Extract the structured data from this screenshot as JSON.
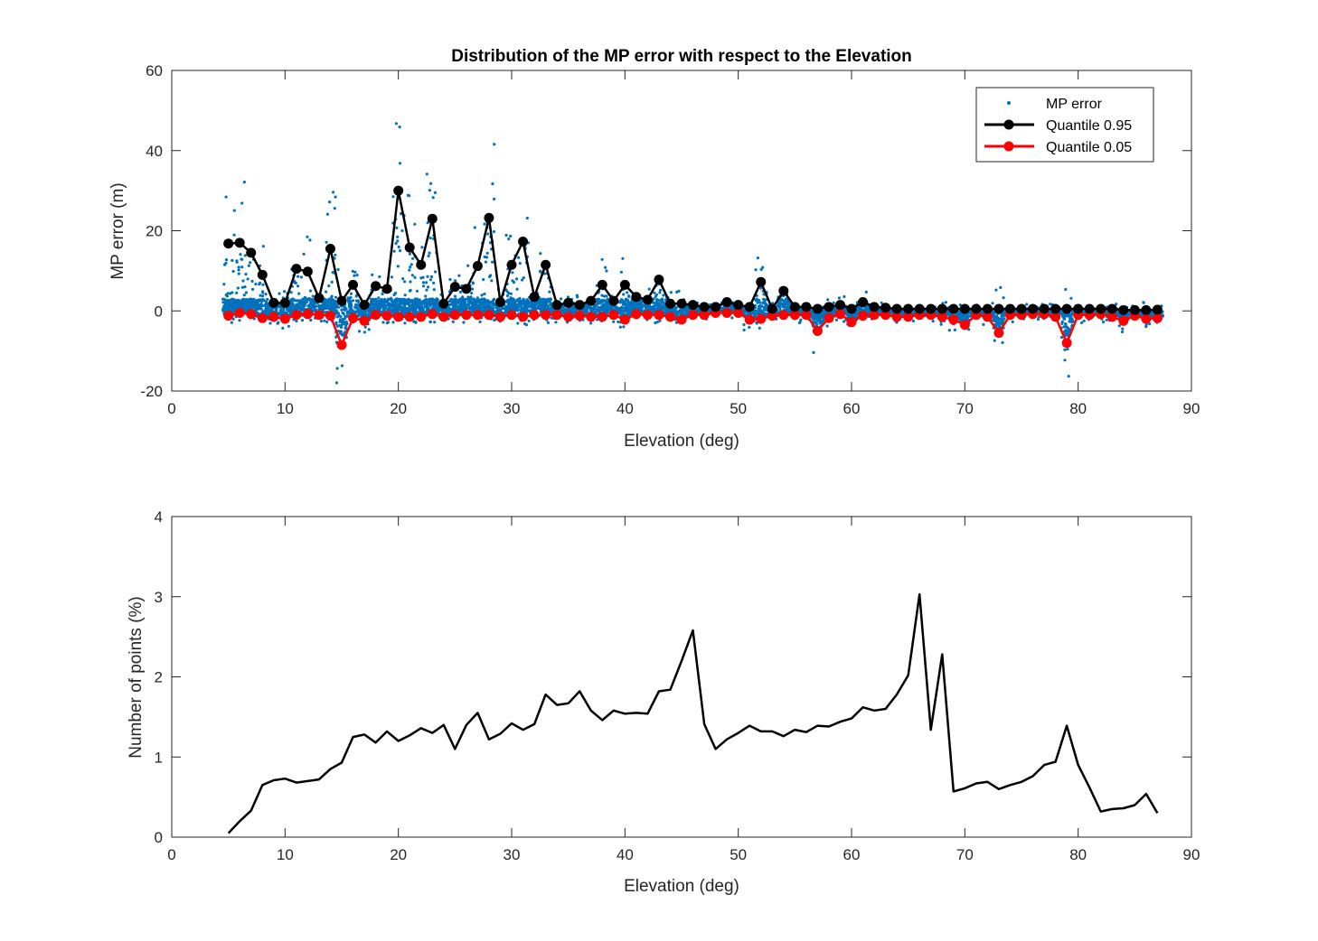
{
  "colors": {
    "scatter": "#0072BD",
    "q95": "#000000",
    "q05": "#FF0000",
    "axis": "#262626",
    "line": "#000000"
  },
  "chart_data": [
    {
      "type": "scatter",
      "title": "Distribution of the MP error with respect to the Elevation",
      "xlabel": "Elevation (deg)",
      "ylabel": "MP error (m)",
      "xlim": [
        0,
        90
      ],
      "ylim": [
        -20,
        60
      ],
      "xticks": [
        "0",
        "10",
        "20",
        "30",
        "40",
        "50",
        "60",
        "70",
        "80",
        "90"
      ],
      "yticks": [
        "-20",
        "0",
        "20",
        "40",
        "60"
      ],
      "grid": false,
      "legend": {
        "placement": "top-right",
        "entries": [
          "MP error",
          "Quantile 0.95",
          "Quantile 0.05"
        ]
      },
      "x": [
        5,
        6,
        7,
        8,
        9,
        10,
        11,
        12,
        13,
        14,
        15,
        16,
        17,
        18,
        19,
        20,
        21,
        22,
        23,
        24,
        25,
        26,
        27,
        28,
        29,
        30,
        31,
        32,
        33,
        34,
        35,
        36,
        37,
        38,
        39,
        40,
        41,
        42,
        43,
        44,
        45,
        46,
        47,
        48,
        49,
        50,
        51,
        52,
        53,
        54,
        55,
        56,
        57,
        58,
        59,
        60,
        61,
        62,
        63,
        64,
        65,
        66,
        67,
        68,
        69,
        70,
        71,
        72,
        73,
        74,
        75,
        76,
        77,
        78,
        79,
        80,
        81,
        82,
        83,
        84,
        85,
        86,
        87
      ],
      "series": [
        {
          "name": "Quantile 0.95",
          "values": [
            16.8,
            17.0,
            14.5,
            9.0,
            2.0,
            2.0,
            10.5,
            9.8,
            3.2,
            15.5,
            2.5,
            6.5,
            1.5,
            6.2,
            5.5,
            30.0,
            15.8,
            11.5,
            23.0,
            1.8,
            6.0,
            5.5,
            11.2,
            23.2,
            2.2,
            11.5,
            17.3,
            3.5,
            11.5,
            1.5,
            2.0,
            1.5,
            2.5,
            6.5,
            2.5,
            6.5,
            3.5,
            2.8,
            7.8,
            1.8,
            1.8,
            1.5,
            1.0,
            1.0,
            2.2,
            1.5,
            1.0,
            7.2,
            0.5,
            5.0,
            1.0,
            1.0,
            0.5,
            1.0,
            1.5,
            0.5,
            2.2,
            1.0,
            0.8,
            0.5,
            0.5,
            0.5,
            0.5,
            0.5,
            0.5,
            0.5,
            0.5,
            0.5,
            0.5,
            0.5,
            0.5,
            0.5,
            0.5,
            0.5,
            0.5,
            0.5,
            0.5,
            0.5,
            0.5,
            0.2,
            0.2,
            0.2,
            0.3
          ]
        },
        {
          "name": "Quantile 0.05",
          "values": [
            -1.2,
            -0.5,
            -0.8,
            -1.8,
            -1.5,
            -2.0,
            -1.0,
            -0.8,
            -1.0,
            -1.2,
            -8.5,
            -1.8,
            -2.5,
            -1.0,
            -1.2,
            -1.5,
            -1.5,
            -1.5,
            -0.8,
            -1.5,
            -1.0,
            -1.0,
            -1.0,
            -1.0,
            -1.5,
            -1.0,
            -1.5,
            -1.0,
            -1.0,
            -1.0,
            -1.5,
            -1.2,
            -1.5,
            -1.5,
            -1.0,
            -2.2,
            -0.8,
            -1.0,
            -1.0,
            -1.5,
            -2.2,
            -1.0,
            -1.0,
            -0.5,
            -0.5,
            -0.5,
            -2.2,
            -2.0,
            -1.2,
            -1.0,
            -1.0,
            -1.0,
            -5.0,
            -1.8,
            -0.8,
            -2.8,
            -1.2,
            -1.0,
            -1.0,
            -1.5,
            -1.5,
            -1.0,
            -1.0,
            -1.5,
            -2.2,
            -3.5,
            -1.0,
            -1.5,
            -5.5,
            -1.0,
            -1.0,
            -0.8,
            -0.8,
            -1.5,
            -8.0,
            -1.0,
            -1.0,
            -0.8,
            -1.5,
            -2.5,
            -1.2,
            -2.0,
            -1.8
          ]
        }
      ]
    },
    {
      "type": "line",
      "title": "",
      "xlabel": "Elevation (deg)",
      "ylabel": "Number of points (%)",
      "xlim": [
        0,
        90
      ],
      "ylim": [
        0,
        4
      ],
      "xticks": [
        "0",
        "10",
        "20",
        "30",
        "40",
        "50",
        "60",
        "70",
        "80",
        "90"
      ],
      "yticks": [
        "0",
        "1",
        "2",
        "3",
        "4"
      ],
      "grid": false,
      "x": [
        5,
        6,
        7,
        8,
        9,
        10,
        11,
        12,
        13,
        14,
        15,
        16,
        17,
        18,
        19,
        20,
        21,
        22,
        23,
        24,
        25,
        26,
        27,
        28,
        29,
        30,
        31,
        32,
        33,
        34,
        35,
        36,
        37,
        38,
        39,
        40,
        41,
        42,
        43,
        44,
        45,
        46,
        47,
        48,
        49,
        50,
        51,
        52,
        53,
        54,
        55,
        56,
        57,
        58,
        59,
        60,
        61,
        62,
        63,
        64,
        65,
        66,
        67,
        68,
        69,
        70,
        71,
        72,
        73,
        74,
        75,
        76,
        77,
        78,
        79,
        80,
        81,
        82,
        83,
        84,
        85,
        86,
        87
      ],
      "values": [
        0.05,
        0.2,
        0.33,
        0.65,
        0.71,
        0.73,
        0.68,
        0.7,
        0.72,
        0.85,
        0.93,
        1.25,
        1.28,
        1.18,
        1.32,
        1.2,
        1.27,
        1.36,
        1.3,
        1.4,
        1.1,
        1.4,
        1.55,
        1.22,
        1.29,
        1.42,
        1.34,
        1.41,
        1.78,
        1.65,
        1.67,
        1.82,
        1.58,
        1.46,
        1.58,
        1.54,
        1.55,
        1.54,
        1.82,
        1.84,
        2.2,
        2.58,
        1.41,
        1.1,
        1.22,
        1.3,
        1.39,
        1.32,
        1.32,
        1.26,
        1.34,
        1.31,
        1.39,
        1.38,
        1.44,
        1.48,
        1.62,
        1.58,
        1.6,
        1.78,
        2.02,
        3.03,
        1.34,
        2.28,
        0.57,
        0.61,
        0.67,
        0.69,
        0.6,
        0.65,
        0.69,
        0.76,
        0.9,
        0.94,
        1.39,
        0.9,
        0.62,
        0.32,
        0.35,
        0.36,
        0.4,
        0.54,
        0.3
      ]
    }
  ]
}
